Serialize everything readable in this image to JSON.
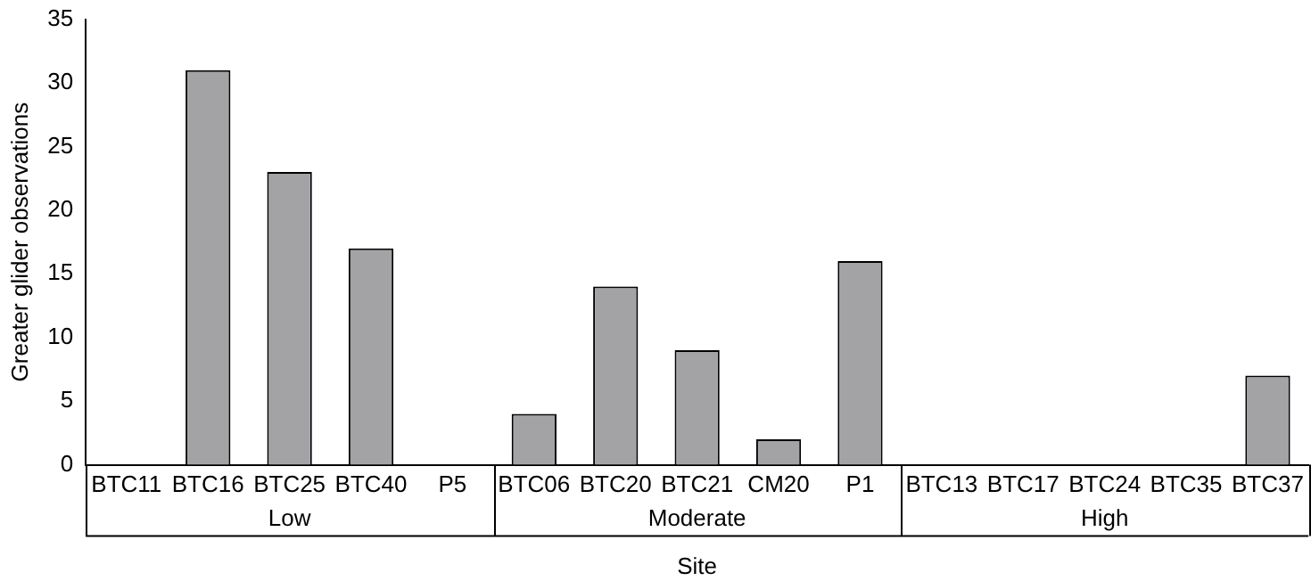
{
  "chart_data": {
    "type": "bar",
    "xlabel": "Site",
    "ylabel": "Greater glider observations",
    "categories": [
      "BTC11",
      "BTC16",
      "BTC25",
      "BTC40",
      "P5",
      "BTC06",
      "BTC20",
      "BTC21",
      "CM20",
      "P1",
      "BTC13",
      "BTC17",
      "BTC24",
      "BTC35",
      "BTC37"
    ],
    "values": [
      0,
      31,
      23,
      17,
      0,
      4,
      14,
      9,
      2,
      16,
      0,
      0,
      0,
      0,
      7
    ],
    "color": "#a3a3a6",
    "ylim": [
      0,
      35
    ],
    "yticks": [
      0,
      5,
      10,
      15,
      20,
      25,
      30,
      35
    ],
    "grid": false,
    "legend": false,
    "annotations": [
      "Low",
      "Moderate",
      "High"
    ]
  }
}
